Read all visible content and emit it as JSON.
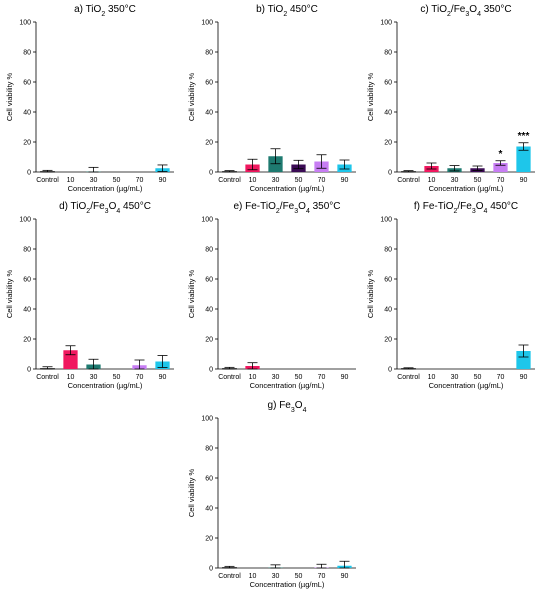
{
  "chart_data": [
    {
      "type": "bar",
      "title": "a) TiO",
      "title_sub": "2",
      "title_rest": " 350°C",
      "categories": [
        "Control",
        "10",
        "30",
        "50",
        "70",
        "90"
      ],
      "values": [
        0.3,
        0,
        0.3,
        0,
        0,
        2.5
      ],
      "errors": [
        0.8,
        0,
        2.8,
        0,
        0,
        2.2
      ],
      "significance": [
        "",
        "",
        "",
        "",
        "",
        ""
      ],
      "xlabel": "Concentration (µg/mL)",
      "ylabel": "Cell viability %",
      "ylim": [
        0,
        100
      ],
      "yticks": [
        0,
        20,
        40,
        60,
        80,
        100
      ]
    },
    {
      "type": "bar",
      "title": "b) TiO",
      "title_sub": "2",
      "title_rest": " 450°C",
      "categories": [
        "Control",
        "10",
        "30",
        "50",
        "70",
        "90"
      ],
      "values": [
        0.3,
        5,
        10.5,
        5,
        7,
        5
      ],
      "errors": [
        0.6,
        3.5,
        5,
        2.8,
        4.5,
        3
      ],
      "significance": [
        "",
        "",
        "",
        "",
        "",
        ""
      ],
      "xlabel": "Concentration (µg/mL)",
      "ylabel": "Cell viability %",
      "ylim": [
        0,
        100
      ],
      "yticks": [
        0,
        20,
        40,
        60,
        80,
        100
      ]
    },
    {
      "type": "bar",
      "title": "c) TiO",
      "title_sub": "2",
      "title_rest": "/Fe",
      "title_sub2": "3",
      "title_rest2": "O",
      "title_sub3": "4",
      "title_rest3": " 350°C",
      "categories": [
        "Control",
        "10",
        "30",
        "50",
        "70",
        "90"
      ],
      "values": [
        0.3,
        4,
        2.5,
        2.5,
        6,
        17
      ],
      "errors": [
        0.6,
        2,
        1.8,
        1.5,
        1.5,
        2.5
      ],
      "significance": [
        "",
        "",
        "",
        "",
        "*",
        "***"
      ],
      "xlabel": "Concentration (µg/mL)",
      "ylabel": "Cell viability %",
      "ylim": [
        0,
        100
      ],
      "yticks": [
        0,
        20,
        40,
        60,
        80,
        100
      ]
    },
    {
      "type": "bar",
      "title": "d) TiO",
      "title_sub": "2",
      "title_rest": "/Fe",
      "title_sub2": "3",
      "title_rest2": "O",
      "title_sub3": "4",
      "title_rest3": " 450°C",
      "categories": [
        "Control",
        "10",
        "30",
        "50",
        "70",
        "90"
      ],
      "values": [
        0.3,
        12.5,
        3,
        0,
        2.5,
        5
      ],
      "errors": [
        1.2,
        3,
        3.5,
        0,
        3.5,
        4
      ],
      "significance": [
        "",
        "",
        "",
        "",
        "",
        ""
      ],
      "xlabel": "Concentration (µg/mL)",
      "ylabel": "Cell viability %",
      "ylim": [
        0,
        100
      ],
      "yticks": [
        0,
        20,
        40,
        60,
        80,
        100
      ]
    },
    {
      "type": "bar",
      "title": "e) Fe-TiO",
      "title_sub": "2",
      "title_rest": "/Fe",
      "title_sub2": "3",
      "title_rest2": "O",
      "title_sub3": "4",
      "title_rest3": " 350°C",
      "categories": [
        "Control",
        "10",
        "30",
        "50",
        "70",
        "90"
      ],
      "values": [
        0.3,
        2,
        0,
        0,
        0,
        0
      ],
      "errors": [
        0.8,
        2.2,
        0,
        0,
        0,
        0
      ],
      "significance": [
        "",
        "",
        "",
        "",
        "",
        ""
      ],
      "xlabel": "Concentration (µg/mL)",
      "ylabel": "Cell viability %",
      "ylim": [
        0,
        100
      ],
      "yticks": [
        0,
        20,
        40,
        60,
        80,
        100
      ]
    },
    {
      "type": "bar",
      "title": "f) Fe-TiO",
      "title_sub": "2",
      "title_rest": "/Fe",
      "title_sub2": "3",
      "title_rest2": "O",
      "title_sub3": "4",
      "title_rest3": " 450°C",
      "categories": [
        "Control",
        "10",
        "30",
        "50",
        "70",
        "90"
      ],
      "values": [
        0.3,
        0,
        0,
        0,
        0,
        12
      ],
      "errors": [
        0.5,
        0,
        0,
        0,
        0,
        4
      ],
      "significance": [
        "",
        "",
        "",
        "",
        "",
        ""
      ],
      "xlabel": "Concentration (µg/mL)",
      "ylabel": "Cell viability %",
      "ylim": [
        0,
        100
      ],
      "yticks": [
        0,
        20,
        40,
        60,
        80,
        100
      ]
    },
    {
      "type": "bar",
      "title": "g) Fe",
      "title_sub": "3",
      "title_rest": "O",
      "title_sub2": "4",
      "title_rest2": "",
      "categories": [
        "Control",
        "10",
        "30",
        "50",
        "70",
        "90"
      ],
      "values": [
        0.3,
        0,
        0.3,
        0,
        0.3,
        1.5
      ],
      "errors": [
        0.8,
        0,
        1.8,
        0,
        2.2,
        3
      ],
      "significance": [
        "",
        "",
        "",
        "",
        "",
        ""
      ],
      "xlabel": "Concentration (µg/mL)",
      "ylabel": "Cell viability %",
      "ylim": [
        0,
        100
      ],
      "yticks": [
        0,
        20,
        40,
        60,
        80,
        100
      ]
    }
  ],
  "colors": {
    "bars": [
      "#ffffff",
      "#f0185f",
      "#1e7a70",
      "#3b0b55",
      "#c77df3",
      "#1ec6ea"
    ],
    "axis": "#000000"
  }
}
